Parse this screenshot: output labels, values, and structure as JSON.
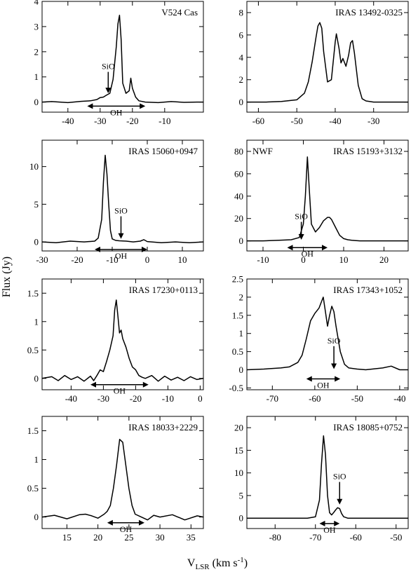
{
  "figure": {
    "ylabel": "Flux (Jy)",
    "xlabel_main": "V",
    "xlabel_sub": "LSR",
    "xlabel_unit": " (km s",
    "xlabel_exp": "-1",
    "xlabel_close": ")"
  },
  "chart_data": [
    {
      "type": "line",
      "title": "V524 Cas",
      "xlim": [
        -48,
        2
      ],
      "ylim": [
        -0.4,
        4
      ],
      "xticks": [
        -40,
        -30,
        -20,
        -10
      ],
      "yticks": [
        0,
        1,
        2,
        3,
        4
      ],
      "series": [
        {
          "x": [
            -48,
            -45,
            -40,
            -36,
            -33,
            -31,
            -30,
            -29,
            -28,
            -27,
            -26,
            -25,
            -24.5,
            -24,
            -23.5,
            -23,
            -22,
            -21,
            -20.5,
            -20,
            -19,
            -18,
            -16,
            -12,
            -8,
            -4,
            0,
            2
          ],
          "y": [
            0,
            0.02,
            -0.02,
            0.03,
            0.05,
            0.1,
            0.18,
            0.2,
            0.28,
            0.35,
            0.9,
            2.2,
            3.1,
            3.45,
            2.5,
            0.75,
            0.35,
            0.45,
            0.95,
            0.55,
            0.2,
            0.05,
            0,
            -0.02,
            0.02,
            -0.01,
            0,
            0
          ]
        }
      ],
      "annotations": [
        {
          "kind": "sio",
          "label": "SiO",
          "x": -27.5,
          "from_y": 1.2,
          "to_y": 0.35
        },
        {
          "kind": "oh",
          "label": "OH",
          "x1": -34,
          "x2": -16,
          "y": -0.16
        }
      ]
    },
    {
      "type": "line",
      "title": "IRAS 13492-0325",
      "xlim": [
        -63,
        -21
      ],
      "ylim": [
        -0.9,
        9
      ],
      "xticks": [
        -60,
        -50,
        -40,
        -30
      ],
      "yticks": [
        0,
        2,
        4,
        6,
        8
      ],
      "series": [
        {
          "x": [
            -63,
            -58,
            -54,
            -50,
            -48,
            -47,
            -46,
            -45,
            -44.5,
            -44,
            -43.5,
            -43,
            -42,
            -41,
            -40,
            -39.7,
            -39,
            -38.5,
            -38,
            -37.2,
            -36.5,
            -36,
            -35.5,
            -35,
            -34,
            -33,
            -32,
            -30,
            -26,
            -21
          ],
          "y": [
            0,
            0,
            0.05,
            0.2,
            0.8,
            1.8,
            3.6,
            5.8,
            6.8,
            7.1,
            6.6,
            4.5,
            1.8,
            2,
            5.4,
            6.1,
            4.8,
            3.5,
            3.9,
            3.2,
            4.2,
            5.3,
            5.5,
            4.4,
            1.5,
            0.3,
            0.1,
            0,
            0,
            0
          ]
        }
      ],
      "annotations": []
    },
    {
      "type": "line",
      "title": "IRAS 15060+0947",
      "xlim": [
        -30,
        16
      ],
      "ylim": [
        -1.2,
        13.5
      ],
      "xticks": [
        -30,
        -20,
        -10,
        0,
        10
      ],
      "yticks": [
        0,
        5,
        10
      ],
      "series": [
        {
          "x": [
            -30,
            -26,
            -22,
            -18,
            -15,
            -14,
            -13,
            -12.5,
            -12,
            -11.5,
            -11,
            -10.5,
            -10,
            -9,
            -8,
            -6,
            -4,
            -2,
            -1,
            0,
            4,
            8,
            12,
            16
          ],
          "y": [
            0,
            -0.1,
            0.1,
            0,
            0.1,
            0.5,
            3,
            8,
            11.5,
            9,
            5,
            1.5,
            0.4,
            0.2,
            0.15,
            0.1,
            0,
            0.1,
            0.3,
            0.05,
            -0.1,
            0,
            -0.1,
            0
          ]
        }
      ],
      "annotations": [
        {
          "kind": "sio",
          "label": "SiO",
          "x": -7.5,
          "from_y": 3.4,
          "to_y": 0.4
        },
        {
          "kind": "oh",
          "label": "OH",
          "x1": -15,
          "x2": 0,
          "y": -1
        }
      ]
    },
    {
      "type": "line",
      "title": "IRAS 15193+3132",
      "subtitle": "NWF",
      "xlim": [
        -14,
        26
      ],
      "ylim": [
        -9,
        90
      ],
      "xticks": [
        -10,
        0,
        10,
        20
      ],
      "yticks": [
        0,
        20,
        40,
        60,
        80
      ],
      "series": [
        {
          "x": [
            -14,
            -10,
            -6,
            -3,
            -1,
            0,
            0.5,
            1,
            1.5,
            2,
            3,
            4,
            5,
            6,
            6.5,
            7,
            8,
            9,
            10,
            11,
            12,
            14,
            18,
            22,
            26
          ],
          "y": [
            0,
            0,
            0.5,
            1,
            3,
            15,
            40,
            75,
            45,
            15,
            8,
            12,
            18,
            21,
            21,
            19,
            12,
            5,
            2,
            1,
            0.5,
            0,
            0,
            0,
            0
          ]
        }
      ],
      "annotations": [
        {
          "kind": "sio",
          "label": "SiO",
          "x": -0.5,
          "from_y": 17,
          "to_y": 1
        },
        {
          "kind": "oh",
          "label": "OH",
          "x1": -4,
          "x2": 6,
          "y": -6
        }
      ]
    },
    {
      "type": "line",
      "title": "IRAS 17230+0113",
      "xlim": [
        -49,
        1
      ],
      "ylim": [
        -0.2,
        1.75
      ],
      "xticks": [
        -40,
        -30,
        -20,
        -10,
        0
      ],
      "yticks": [
        0,
        0.5,
        1,
        1.5
      ],
      "series": [
        {
          "x": [
            -49,
            -46,
            -44,
            -42,
            -40,
            -38,
            -36,
            -34,
            -33,
            -32,
            -31,
            -30,
            -29,
            -28,
            -27,
            -26.5,
            -26,
            -25.5,
            -25,
            -24.5,
            -24,
            -23,
            -22,
            -21,
            -20,
            -19,
            -18,
            -17,
            -15,
            -13,
            -11,
            -9,
            -7,
            -5,
            -3,
            -1,
            1
          ],
          "y": [
            0,
            0.03,
            -0.04,
            0.05,
            -0.02,
            0.03,
            -0.05,
            0.04,
            -0.04,
            0.05,
            0.15,
            0.12,
            0.3,
            0.5,
            0.75,
            1.2,
            1.38,
            1.1,
            0.8,
            0.85,
            0.7,
            0.55,
            0.35,
            0.2,
            0.15,
            0.05,
            0.02,
            0,
            0.05,
            -0.05,
            0.04,
            -0.03,
            0.02,
            -0.04,
            0.03,
            -0.02,
            0
          ]
        }
      ],
      "annotations": [
        {
          "kind": "oh",
          "label": "OH",
          "x1": -34,
          "x2": -16,
          "y": -0.11
        }
      ]
    },
    {
      "type": "line",
      "title": "IRAS 17343+1052",
      "xlim": [
        -76,
        -38
      ],
      "ylim": [
        -0.55,
        2.5
      ],
      "xticks": [
        -70,
        -60,
        -50,
        -40
      ],
      "yticks": [
        -0.5,
        0,
        0.5,
        1,
        1.5,
        2,
        2.5
      ],
      "series": [
        {
          "x": [
            -76,
            -72,
            -68,
            -66,
            -64,
            -63,
            -62,
            -61,
            -60,
            -59,
            -58,
            -57.5,
            -57,
            -56.5,
            -56,
            -55.5,
            -55,
            -54,
            -53,
            -52,
            -50,
            -48,
            -44,
            -42,
            -40,
            -38
          ],
          "y": [
            0,
            0.02,
            0.05,
            0.08,
            0.2,
            0.4,
            0.85,
            1.35,
            1.55,
            1.7,
            2,
            1.6,
            1.2,
            1.5,
            1.75,
            1.6,
            1.2,
            0.5,
            0.15,
            0.05,
            0.02,
            0,
            0.05,
            0.1,
            0,
            0
          ]
        }
      ],
      "annotations": [
        {
          "kind": "sio",
          "label": "SiO",
          "x": -55.5,
          "from_y": 0.65,
          "to_y": 0.02
        },
        {
          "kind": "oh",
          "label": "OH",
          "x1": -62,
          "x2": -54,
          "y": -0.25
        }
      ]
    },
    {
      "type": "line",
      "title": "IRAS 18033+2229",
      "xlim": [
        11,
        37
      ],
      "ylim": [
        -0.2,
        1.75
      ],
      "xticks": [
        15,
        20,
        25,
        30,
        35
      ],
      "yticks": [
        0,
        0.5,
        1,
        1.5
      ],
      "series": [
        {
          "x": [
            11,
            13,
            15,
            17,
            18,
            19,
            20,
            21,
            21.5,
            22,
            22.5,
            23,
            23.5,
            24,
            24.5,
            25,
            25.5,
            26,
            27,
            28,
            29,
            30,
            32,
            34,
            36,
            37
          ],
          "y": [
            0,
            0.03,
            -0.03,
            0.04,
            0.05,
            0.02,
            -0.02,
            0.05,
            0.1,
            0.2,
            0.5,
            0.9,
            1.35,
            1.3,
            0.9,
            0.5,
            0.2,
            0.05,
            0,
            -0.05,
            0.03,
            0,
            0.04,
            -0.05,
            0.02,
            0
          ]
        }
      ],
      "annotations": [
        {
          "kind": "oh",
          "label": "OH",
          "x1": 21.5,
          "x2": 27.5,
          "y": -0.1
        }
      ]
    },
    {
      "type": "line",
      "title": "IRAS 18085+0752",
      "xlim": [
        -87,
        -47
      ],
      "ylim": [
        -2.3,
        22.5
      ],
      "xticks": [
        -80,
        -70,
        -60,
        -50
      ],
      "yticks": [
        0,
        5,
        10,
        15,
        20
      ],
      "series": [
        {
          "x": [
            -87,
            -80,
            -75,
            -72,
            -70,
            -69,
            -68.5,
            -68,
            -67.5,
            -67,
            -66.5,
            -66,
            -65.5,
            -65,
            -64.5,
            -64,
            -63.5,
            -63,
            -62,
            -60,
            -55,
            -50,
            -47
          ],
          "y": [
            0,
            0,
            0,
            0,
            0.3,
            4,
            12,
            18.2,
            14,
            5,
            1.2,
            0.7,
            1.2,
            1.8,
            2.3,
            2.1,
            1,
            0.3,
            0,
            0,
            0,
            0,
            0
          ]
        }
      ],
      "annotations": [
        {
          "kind": "sio",
          "label": "SiO",
          "x": -64,
          "from_y": 8,
          "to_y": 3
        },
        {
          "kind": "oh",
          "label": "OH",
          "x1": -69,
          "x2": -64,
          "y": -1.2
        }
      ]
    }
  ]
}
